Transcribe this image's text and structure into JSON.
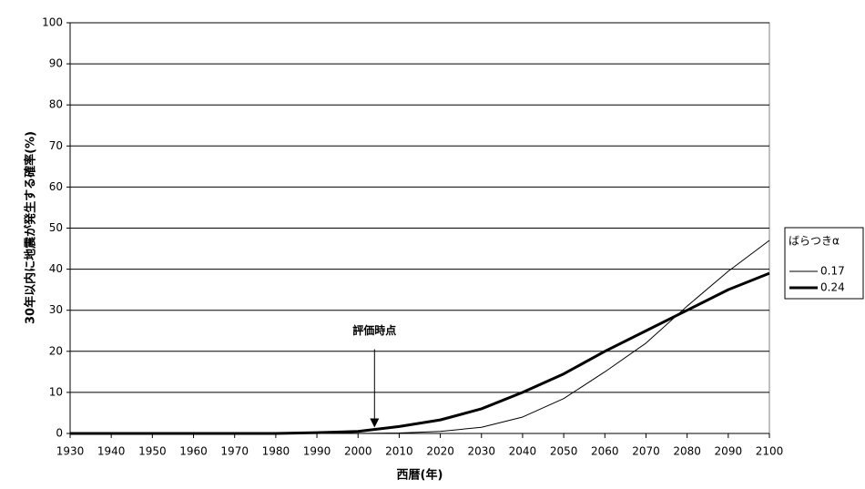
{
  "chart_data": {
    "type": "line",
    "x_label": "西暦(年)",
    "y_label": "30年以内に地震が発生する確率(%)",
    "x": [
      1930,
      1940,
      1950,
      1960,
      1970,
      1980,
      1990,
      2000,
      2010,
      2020,
      2030,
      2040,
      2050,
      2060,
      2070,
      2080,
      2090,
      2100
    ],
    "series": [
      {
        "name": "0.17",
        "color": "#000000",
        "width": 1,
        "values": [
          0,
          0,
          0,
          0,
          0,
          0,
          0,
          0,
          0.1,
          0.5,
          1.5,
          4,
          8.5,
          15,
          22,
          31,
          39.5,
          47
        ]
      },
      {
        "name": "0.24",
        "color": "#000000",
        "width": 3,
        "values": [
          0,
          0,
          0,
          0,
          0,
          0,
          0.2,
          0.5,
          1.7,
          3.3,
          6,
          10,
          14.5,
          20,
          25,
          30,
          35,
          39
        ]
      }
    ],
    "legend_title": "ばらつきα",
    "legend": "right",
    "annotation": {
      "text": "評価時点",
      "x": 2004,
      "y": 1
    },
    "xlim": [
      1930,
      2100
    ],
    "xticks": [
      1930,
      1940,
      1950,
      1960,
      1970,
      1980,
      1990,
      2000,
      2010,
      2020,
      2030,
      2040,
      2050,
      2060,
      2070,
      2080,
      2090,
      2100
    ],
    "ylim": [
      0,
      100
    ],
    "yticks": [
      0,
      10,
      20,
      30,
      40,
      50,
      60,
      70,
      80,
      90,
      100
    ],
    "grid": true
  }
}
